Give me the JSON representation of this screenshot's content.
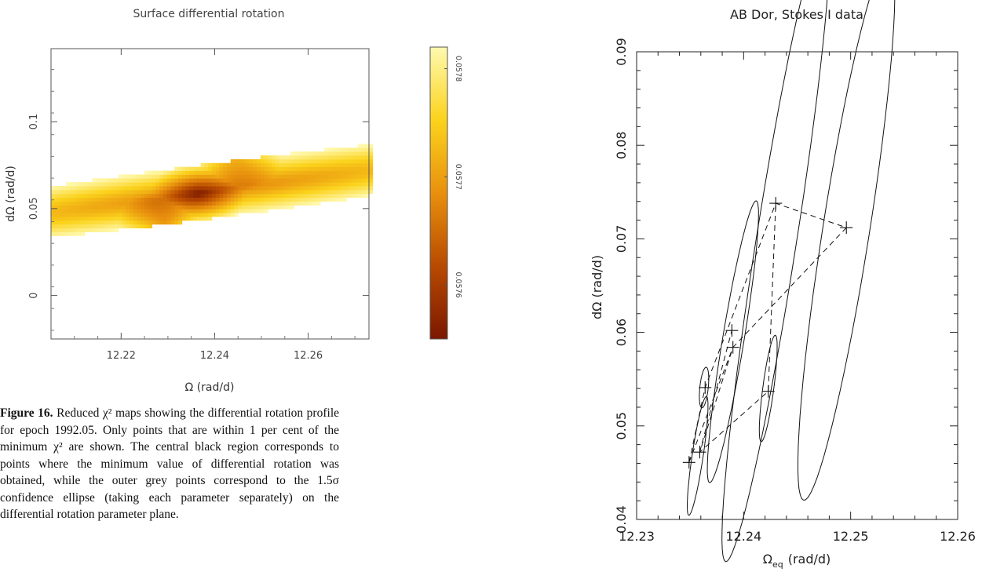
{
  "chart_data": [
    {
      "type": "heatmap",
      "title": "Surface differential rotation",
      "xlabel": "Ω (rad/d)",
      "ylabel": "dΩ (rad/d)",
      "xlim": [
        12.205,
        12.273
      ],
      "ylim": [
        -0.025,
        0.142
      ],
      "x_ticks": [
        "12.22",
        "12.24",
        "12.26"
      ],
      "y_ticks": [
        "0",
        "0.05",
        "0.1"
      ],
      "x_tick_values": [
        12.22,
        12.24,
        12.26
      ],
      "y_tick_values": [
        0,
        0.05,
        0.1
      ],
      "colorbar": {
        "range": [
          0.05755,
          0.05782
        ],
        "tick_labels": [
          "0.0578",
          "0.0577",
          "0.0576"
        ],
        "tick_values": [
          0.0578,
          0.0577,
          0.0576
        ],
        "colors": [
          "#7a1800",
          "#b84a00",
          "#e8900e",
          "#fbd31c",
          "#fff9b0"
        ]
      },
      "region": {
        "description": "elongated ellipse of accepted points, darker toward centre",
        "center": [
          12.239,
          0.06
        ],
        "major_direction": [
          0.0245,
          0.0615
        ],
        "minor_direction": [
          0.0055,
          -0.014
        ],
        "minimum_points": [
          [
            12.229,
            0.04
          ],
          [
            12.236,
            0.057
          ],
          [
            12.244,
            0.079
          ]
        ]
      }
    },
    {
      "type": "scatter",
      "title": "AB Dor, Stokes I data",
      "xlabel": "Ω",
      "xlabel_sub": "eq",
      "xlabel_unit": "(rad/d)",
      "ylabel": "dΩ (rad/d)",
      "xlim": [
        12.23,
        12.26
      ],
      "ylim": [
        0.04,
        0.09
      ],
      "x_ticks": [
        "12.23",
        "12.24",
        "12.25",
        "12.26"
      ],
      "y_ticks": [
        "0.04",
        "0.05",
        "0.06",
        "0.07",
        "0.08",
        "0.09"
      ],
      "x_tick_values": [
        12.23,
        12.24,
        12.25,
        12.26
      ],
      "y_tick_values": [
        0.04,
        0.05,
        0.06,
        0.07,
        0.08,
        0.09
      ],
      "points": [
        {
          "x": 12.2349,
          "y": 0.0461
        },
        {
          "x": 12.2359,
          "y": 0.0472
        },
        {
          "x": 12.2364,
          "y": 0.0541
        },
        {
          "x": 12.239,
          "y": 0.0584
        },
        {
          "x": 12.2389,
          "y": 0.0602
        },
        {
          "x": 12.2423,
          "y": 0.0537
        },
        {
          "x": 12.243,
          "y": 0.0738
        },
        {
          "x": 12.2496,
          "y": 0.0712
        }
      ],
      "ellipses": [
        {
          "x": 12.2357,
          "y": 0.0468,
          "a": 0.0065,
          "b": 0.00085,
          "angle_deg": 70
        },
        {
          "x": 12.2363,
          "y": 0.0541,
          "a": 0.0022,
          "b": 0.00065,
          "angle_deg": 75
        },
        {
          "x": 12.239,
          "y": 0.059,
          "a": 0.0155,
          "b": 0.00165,
          "angle_deg": 68
        },
        {
          "x": 12.2423,
          "y": 0.054,
          "a": 0.0058,
          "b": 0.00085,
          "angle_deg": 72
        },
        {
          "x": 12.243,
          "y": 0.0694,
          "a": 0.0348,
          "b": 0.0031,
          "angle_deg": 69
        },
        {
          "x": 12.2496,
          "y": 0.0711,
          "a": 0.0298,
          "b": 0.0036,
          "angle_deg": 69
        }
      ],
      "dashed_paths": [
        [
          [
            12.2349,
            0.0461
          ],
          [
            12.2364,
            0.0541
          ],
          [
            12.243,
            0.0738
          ],
          [
            12.2496,
            0.0712
          ],
          [
            12.239,
            0.0584
          ],
          [
            12.2359,
            0.0472
          ],
          [
            12.2423,
            0.0537
          ],
          [
            12.243,
            0.0738
          ]
        ],
        [
          [
            12.2359,
            0.0472
          ],
          [
            12.2389,
            0.0602
          ]
        ],
        [
          [
            12.2349,
            0.0461
          ],
          [
            12.239,
            0.0584
          ]
        ]
      ]
    }
  ],
  "caption": {
    "lead": "Figure 16.",
    "body": " Reduced χ² maps showing the differential rotation profile for epoch 1992.05. Only points that are within 1 per cent of the minimum χ² are shown. The central black region corresponds to points where the minimum value of differential rotation was obtained, while the outer grey points correspond to the 1.5σ confidence ellipse (taking each parameter separately) on the differential rotation parameter plane."
  }
}
